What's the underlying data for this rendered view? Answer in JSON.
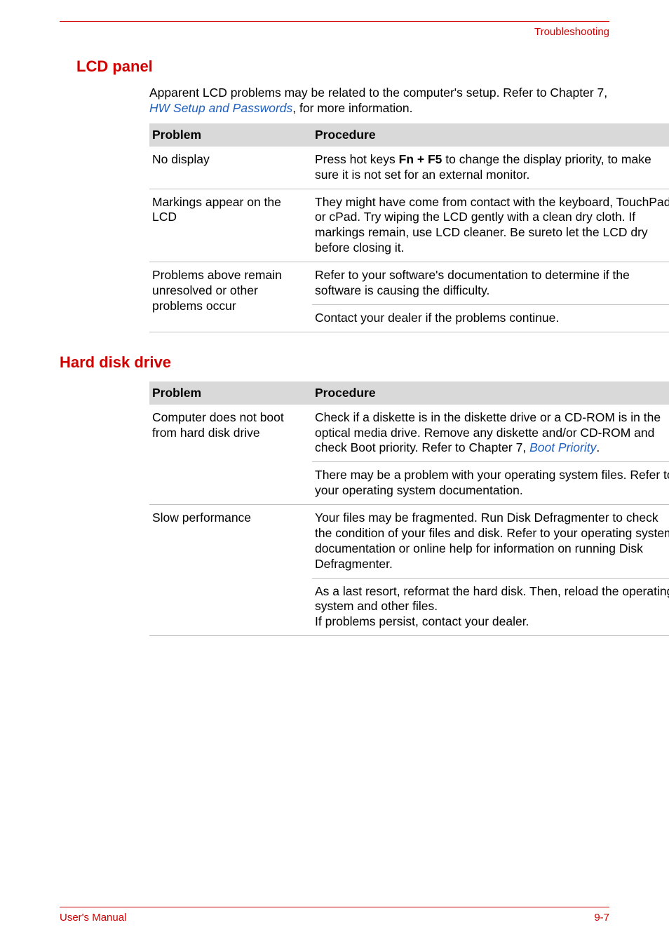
{
  "running_head": "Troubleshooting",
  "section1": {
    "heading": "LCD panel",
    "intro_prefix": "Apparent LCD problems may be related to the computer's setup. Refer to Chapter 7, ",
    "intro_link": "HW Setup and Passwords",
    "intro_suffix": ", for more information.",
    "table": {
      "col1_header": "Problem",
      "col2_header": "Procedure",
      "rows": [
        {
          "problem": "No display",
          "procedure_pre": "Press hot keys ",
          "procedure_bold": "Fn + F5",
          "procedure_post": " to change the display priority, to make sure it is not set for an external monitor."
        },
        {
          "problem": "Markings appear on the LCD",
          "procedure": "They might have come from contact with the keyboard, TouchPad or cPad. Try wiping the LCD gently with a clean dry cloth. If markings remain, use LCD cleaner. Be sureto let the LCD dry before closing it."
        },
        {
          "problem": "Problems above remain unresolved or other problems occur",
          "procedure_a": "Refer to your software's documentation to determine if the software is causing the difficulty.",
          "procedure_b": "Contact your dealer if the problems continue."
        }
      ]
    }
  },
  "section2": {
    "heading": "Hard disk drive",
    "table": {
      "col1_header": "Problem",
      "col2_header": "Procedure",
      "rows": [
        {
          "problem": "Computer does not boot from hard disk drive",
          "procedure_a_pre": "Check if a diskette is in the diskette drive or a CD-ROM is in the optical media drive. Remove any diskette and/or CD-ROM and check Boot priority. Refer to Chapter 7, ",
          "procedure_a_link": "Boot Priority",
          "procedure_a_post": ".",
          "procedure_b": "There may be a problem with your operating system files. Refer to your operating system documentation."
        },
        {
          "problem": "Slow performance",
          "procedure_a": "Your files may be fragmented. Run Disk Defragmenter to check the condition of your files and disk. Refer to your operating system documentation or online help for information on running Disk Defragmenter.",
          "procedure_b": "As a last resort, reformat the hard disk. Then, reload the operating system and other files.",
          "procedure_c": "If problems persist, contact your dealer."
        }
      ]
    }
  },
  "footer": {
    "left": "User's Manual",
    "right": "9-7"
  },
  "colors": {
    "accent": "#d00000",
    "header_bg": "#d9d9d9",
    "row_border": "#bfbfbf",
    "link": "#2060c0",
    "text": "#000000",
    "page_bg": "#ffffff"
  }
}
